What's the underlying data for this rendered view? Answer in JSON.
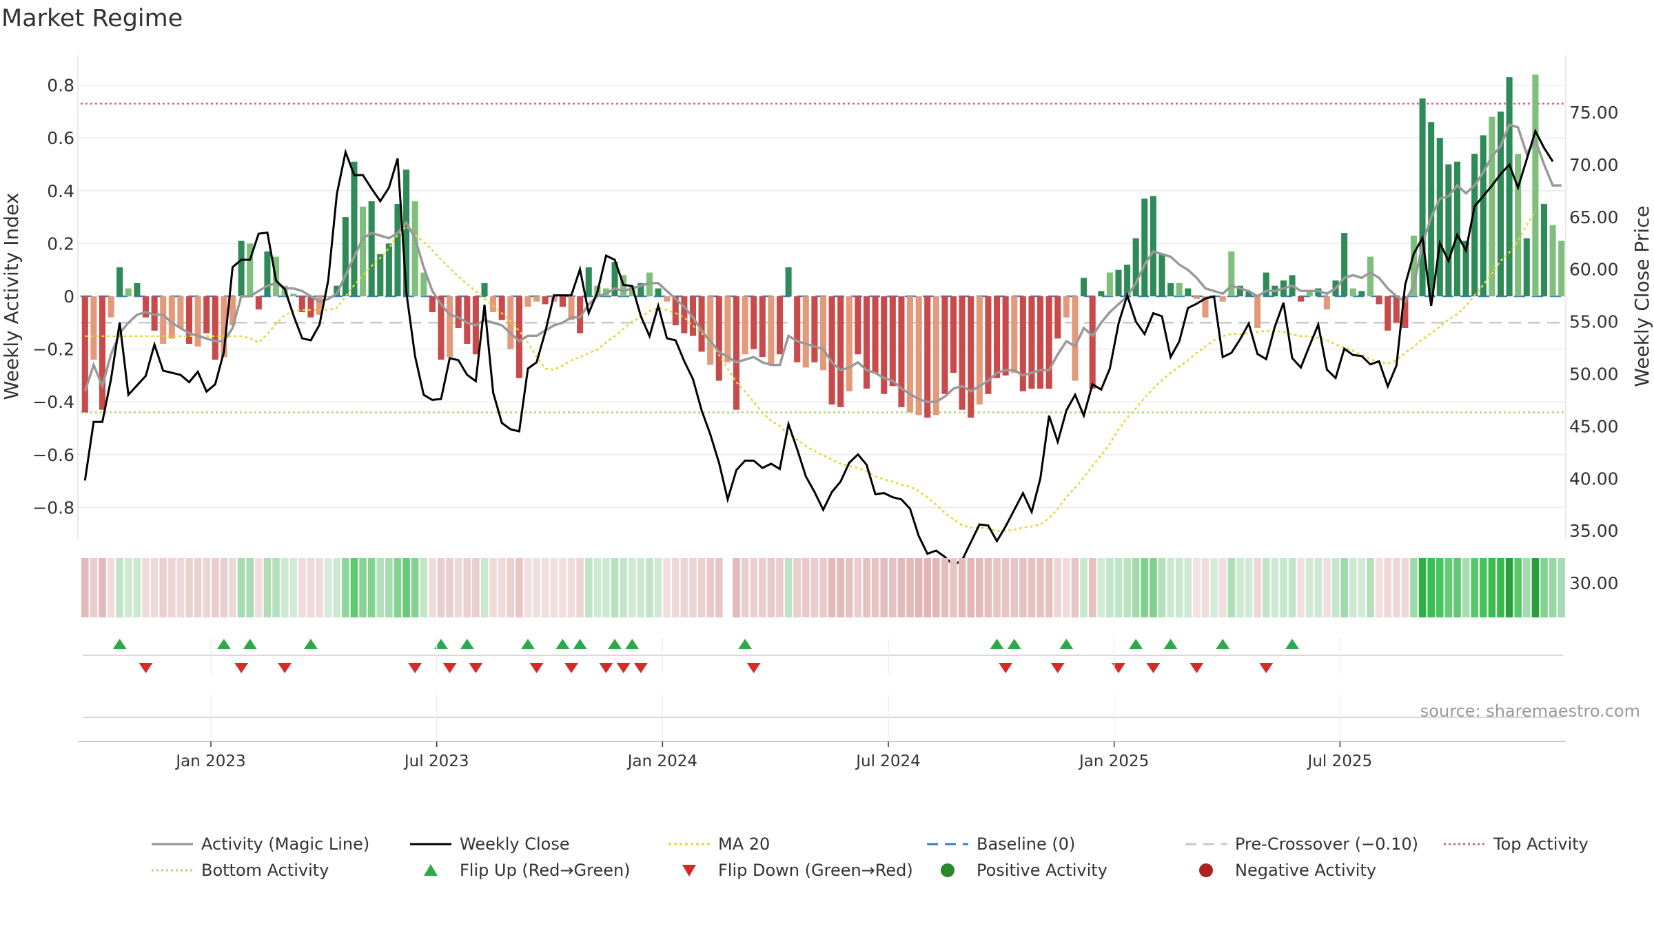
{
  "title": "Market Regime",
  "source_note": "source: sharemaestro.com",
  "colors": {
    "green_dark": "#2e8b57",
    "green_light": "#7fbf7b",
    "red_dark": "#c94a4a",
    "red_light": "#e39a7a",
    "magic_line": "#999999",
    "weekly_close": "#000000",
    "ma20": "#e5d63a",
    "baseline": "#3a7fbf",
    "precrossover": "#c8c8c8",
    "top_activity": "#e05a7a",
    "bottom_activity": "#a8d86a",
    "flip_up": "#2ea84a",
    "flip_down": "#d62a2a",
    "positive_dot": "#2a8a2a",
    "negative_dot": "#b02020"
  },
  "legend": [
    {
      "label": "Activity (Magic Line)",
      "icon": "grey-line-icon"
    },
    {
      "label": "Weekly Close",
      "icon": "black-line-icon"
    },
    {
      "label": "MA 20",
      "icon": "yellow-dotted-line-icon"
    },
    {
      "label": "Baseline (0)",
      "icon": "blue-dashed-line-icon"
    },
    {
      "label": "Pre-Crossover (−0.10)",
      "icon": "grey-dashed-line-icon"
    },
    {
      "label": "Top Activity",
      "icon": "pink-dotted-line-icon"
    },
    {
      "label": "Bottom Activity",
      "icon": "green-dotted-line-icon"
    },
    {
      "label": "Flip Up (Red→Green)",
      "icon": "green-triangle-up-icon"
    },
    {
      "label": "Flip Down (Green→Red)",
      "icon": "red-triangle-down-icon"
    },
    {
      "label": "Positive Activity",
      "icon": "green-circle-icon"
    },
    {
      "label": "Negative Activity",
      "icon": "red-circle-icon"
    }
  ],
  "chart_data": {
    "type": "bar",
    "title": "Market Regime",
    "ylabel_left": "Weekly Activity Index",
    "ylabel_right": "Weekly Close Price",
    "ylim_left": [
      -0.92,
      0.92
    ],
    "ylim_right": [
      29,
      75.5
    ],
    "yticks_left": [
      "0.8",
      "0.6",
      "0.4",
      "0.2",
      "0",
      "−0.2",
      "−0.4",
      "−0.6",
      "−0.8"
    ],
    "yticks_left_values": [
      0.8,
      0.6,
      0.4,
      0.2,
      0,
      -0.2,
      -0.4,
      -0.6,
      -0.8
    ],
    "yticks_right": [
      "75.00",
      "70.00",
      "65.00",
      "60.00",
      "55.00",
      "50.00",
      "45.00",
      "40.00",
      "35.00",
      "30.00"
    ],
    "yticks_right_values": [
      75,
      70,
      65,
      60,
      55,
      50,
      45,
      40,
      35,
      30
    ],
    "xticks": [
      "Jan 2023",
      "Jul 2023",
      "Jan 2024",
      "Jul 2024",
      "Jan 2025",
      "Jul 2025"
    ],
    "xticks_week_index": [
      15,
      41,
      67,
      93,
      119,
      145
    ],
    "reference_lines": {
      "top_activity": 0.73,
      "bottom_activity": -0.44,
      "pre_crossover": -0.1,
      "baseline": 0
    },
    "activity": [
      -0.44,
      -0.24,
      -0.43,
      -0.08,
      0.11,
      0.03,
      0.05,
      -0.08,
      -0.13,
      -0.18,
      -0.16,
      -0.12,
      -0.18,
      -0.19,
      -0.14,
      -0.24,
      -0.23,
      -0.11,
      0.21,
      0.2,
      -0.05,
      0.17,
      0.15,
      0.04,
      0.01,
      -0.06,
      -0.08,
      -0.07,
      0.0,
      0.04,
      0.3,
      0.51,
      0.34,
      0.36,
      0.16,
      0.2,
      0.35,
      0.48,
      0.36,
      0.09,
      -0.06,
      -0.24,
      -0.23,
      -0.12,
      -0.18,
      -0.22,
      0.05,
      -0.06,
      -0.09,
      -0.2,
      -0.31,
      -0.04,
      -0.02,
      -0.03,
      -0.02,
      -0.04,
      -0.09,
      -0.14,
      0.11,
      0.04,
      0.03,
      0.13,
      0.08,
      0.04,
      0.05,
      0.09,
      0.03,
      -0.02,
      -0.11,
      -0.14,
      -0.15,
      -0.21,
      -0.26,
      -0.32,
      -0.25,
      -0.43,
      -0.22,
      -0.2,
      -0.23,
      -0.26,
      -0.22,
      0.11,
      -0.25,
      -0.27,
      -0.25,
      -0.28,
      -0.41,
      -0.42,
      -0.36,
      -0.22,
      -0.35,
      -0.29,
      -0.37,
      -0.34,
      -0.42,
      -0.44,
      -0.45,
      -0.46,
      -0.45,
      -0.37,
      -0.29,
      -0.43,
      -0.46,
      -0.41,
      -0.37,
      -0.31,
      -0.3,
      -0.29,
      -0.36,
      -0.35,
      -0.35,
      -0.35,
      -0.16,
      -0.08,
      -0.32,
      0.07,
      -0.35,
      0.02,
      0.09,
      0.1,
      0.12,
      0.22,
      0.37,
      0.38,
      0.16,
      0.05,
      0.05,
      0.03,
      -0.01,
      -0.08,
      0.0,
      -0.02,
      0.17,
      0.04,
      0.02,
      -0.12,
      0.09,
      0.04,
      0.06,
      0.08,
      -0.02,
      0.02,
      0.03,
      -0.05,
      0.06,
      0.24,
      0.03,
      0.02,
      0.15,
      -0.03,
      -0.13,
      -0.1,
      -0.12,
      0.23,
      0.75,
      0.66,
      0.6,
      0.5,
      0.51,
      0.21,
      0.54,
      0.61,
      0.68,
      0.7,
      0.83,
      0.54,
      0.22,
      0.84,
      0.35,
      0.27,
      0.21
    ],
    "activity_shade": [
      "D",
      "L",
      "D",
      "L",
      "D",
      "L",
      "D",
      "D",
      "D",
      "L",
      "L",
      "L",
      "D",
      "L",
      "D",
      "D",
      "L",
      "L",
      "D",
      "L",
      "D",
      "D",
      "L",
      "L",
      "L",
      "D",
      "D",
      "L",
      "L",
      "D",
      "D",
      "D",
      "L",
      "D",
      "D",
      "D",
      "D",
      "D",
      "L",
      "L",
      "D",
      "D",
      "L",
      "D",
      "D",
      "D",
      "D",
      "L",
      "D",
      "L",
      "D",
      "L",
      "L",
      "D",
      "L",
      "D",
      "L",
      "D",
      "D",
      "L",
      "L",
      "D",
      "L",
      "L",
      "D",
      "L",
      "D",
      "L",
      "D",
      "D",
      "D",
      "D",
      "L",
      "D",
      "L",
      "D",
      "L",
      "D",
      "D",
      "L",
      "D",
      "D",
      "D",
      "L",
      "D",
      "L",
      "D",
      "D",
      "L",
      "D",
      "D",
      "D",
      "D",
      "D",
      "D",
      "L",
      "L",
      "D",
      "L",
      "D",
      "D",
      "D",
      "D",
      "L",
      "D",
      "D",
      "D",
      "L",
      "D",
      "D",
      "D",
      "D",
      "D",
      "L",
      "L",
      "D",
      "D",
      "D",
      "L",
      "D",
      "D",
      "D",
      "D",
      "D",
      "D",
      "D",
      "L",
      "D",
      "L",
      "L",
      "D",
      "L",
      "L",
      "D",
      "D",
      "L",
      "D",
      "D",
      "D",
      "D",
      "D",
      "L",
      "D",
      "L",
      "D",
      "D",
      "L",
      "D",
      "L",
      "D",
      "D",
      "D",
      "D",
      "L",
      "D",
      "D",
      "D",
      "D",
      "D",
      "D",
      "D",
      "D",
      "L",
      "D",
      "D",
      "L",
      "D",
      "L",
      "D",
      "L",
      "L",
      "D",
      "L",
      "L",
      "L"
    ],
    "magic_line": [
      -0.36,
      -0.26,
      -0.34,
      -0.22,
      -0.14,
      -0.1,
      -0.07,
      -0.06,
      -0.07,
      -0.07,
      -0.1,
      -0.12,
      -0.14,
      -0.15,
      -0.16,
      -0.17,
      -0.17,
      -0.12,
      0.0,
      0.0,
      0.02,
      0.04,
      0.05,
      0.03,
      0.03,
      0.02,
      0.0,
      -0.02,
      -0.01,
      0.01,
      0.08,
      0.15,
      0.22,
      0.24,
      0.23,
      0.22,
      0.24,
      0.28,
      0.22,
      0.11,
      0.02,
      -0.03,
      -0.07,
      -0.08,
      -0.1,
      -0.11,
      -0.09,
      -0.1,
      -0.11,
      -0.14,
      -0.17,
      -0.15,
      -0.15,
      -0.13,
      -0.11,
      -0.1,
      -0.08,
      -0.08,
      -0.03,
      0.0,
      0.01,
      0.03,
      0.02,
      0.03,
      0.04,
      0.05,
      0.05,
      0.02,
      -0.01,
      -0.04,
      -0.08,
      -0.13,
      -0.17,
      -0.21,
      -0.23,
      -0.25,
      -0.24,
      -0.23,
      -0.25,
      -0.26,
      -0.26,
      -0.15,
      -0.17,
      -0.18,
      -0.19,
      -0.2,
      -0.25,
      -0.28,
      -0.27,
      -0.25,
      -0.28,
      -0.29,
      -0.31,
      -0.32,
      -0.35,
      -0.37,
      -0.39,
      -0.4,
      -0.4,
      -0.38,
      -0.35,
      -0.34,
      -0.36,
      -0.34,
      -0.32,
      -0.29,
      -0.28,
      -0.28,
      -0.3,
      -0.29,
      -0.28,
      -0.28,
      -0.22,
      -0.17,
      -0.19,
      -0.12,
      -0.15,
      -0.1,
      -0.06,
      -0.03,
      0.0,
      0.05,
      0.12,
      0.17,
      0.16,
      0.15,
      0.12,
      0.1,
      0.07,
      0.03,
      0.02,
      0.01,
      0.04,
      0.03,
      0.02,
      0.0,
      0.02,
      0.02,
      0.03,
      0.04,
      0.02,
      0.02,
      0.02,
      0.01,
      0.03,
      0.07,
      0.08,
      0.07,
      0.09,
      0.07,
      0.03,
      0.0,
      -0.02,
      0.04,
      0.2,
      0.3,
      0.37,
      0.38,
      0.42,
      0.39,
      0.42,
      0.47,
      0.53,
      0.57,
      0.65,
      0.64,
      0.54,
      0.59,
      0.5,
      0.42,
      0.42
    ],
    "weekly_close": [
      39.8,
      45.4,
      45.4,
      49.5,
      54.9,
      48.0,
      48.9,
      49.8,
      52.8,
      50.3,
      50.1,
      49.9,
      49.2,
      50.2,
      48.3,
      49.0,
      52.1,
      60.2,
      60.9,
      60.9,
      63.4,
      63.5,
      58.9,
      58.1,
      55.6,
      53.4,
      53.2,
      54.7,
      58.9,
      67.2,
      71.2,
      69.0,
      69.0,
      67.7,
      66.5,
      67.8,
      70.6,
      57.8,
      51.7,
      48.0,
      47.5,
      47.6,
      51.5,
      51.3,
      49.9,
      49.3,
      56.6,
      48.2,
      45.3,
      44.7,
      44.5,
      50.5,
      51.1,
      54.0,
      57.5,
      57.5,
      57.5,
      60.0,
      55.8,
      57.8,
      61.3,
      60.9,
      58.5,
      58.4,
      55.5,
      53.6,
      56.5,
      53.4,
      53.2,
      51.2,
      49.5,
      46.5,
      44.2,
      41.5,
      38.0,
      40.8,
      41.7,
      41.7,
      41.0,
      41.4,
      40.9,
      45.2,
      42.8,
      40.2,
      38.7,
      37.0,
      38.7,
      39.7,
      41.5,
      42.3,
      41.3,
      38.5,
      38.6,
      38.2,
      38.0,
      37.1,
      34.5,
      32.8,
      33.1,
      32.5,
      31.7,
      32.2,
      33.9,
      35.6,
      35.5,
      34.0,
      35.4,
      37.0,
      38.6,
      36.8,
      40.0,
      46.0,
      43.5,
      46.5,
      48.0,
      46.0,
      49.0,
      48.5,
      50.5,
      54.8,
      57.5,
      55.0,
      53.8,
      55.8,
      55.5,
      51.6,
      53.1,
      56.3,
      56.7,
      57.2,
      57.4,
      51.6,
      52.0,
      53.3,
      54.8,
      51.9,
      51.4,
      54.5,
      56.8,
      51.5,
      50.6,
      52.7,
      54.7,
      50.4,
      49.6,
      52.4,
      51.8,
      51.7,
      50.9,
      51.2,
      48.8,
      50.8,
      58.5,
      61.5,
      63.0,
      56.5,
      62.5,
      60.8,
      63.3,
      61.8,
      66.0,
      67.0,
      68.0,
      69.1,
      70.0,
      67.8,
      70.5,
      73.2,
      71.6,
      70.3
    ],
    "ma20": [
      53.6,
      53.6,
      53.6,
      53.6,
      53.6,
      53.6,
      53.6,
      53.6,
      53.6,
      53.6,
      53.6,
      53.6,
      53.6,
      53.6,
      53.6,
      53.6,
      53.6,
      53.6,
      53.6,
      53.4,
      53.0,
      53.8,
      54.8,
      55.6,
      56.0,
      56.1,
      56.1,
      56.1,
      56.1,
      56.3,
      57.4,
      58.5,
      59.4,
      60.3,
      61.1,
      62.0,
      63.3,
      64.1,
      63.3,
      62.6,
      61.8,
      60.9,
      60.1,
      59.3,
      58.6,
      57.9,
      57.2,
      56.5,
      55.8,
      55.0,
      54.1,
      53.0,
      51.6,
      50.5,
      50.4,
      50.8,
      51.3,
      51.6,
      52.0,
      52.3,
      53.0,
      53.6,
      54.3,
      55.0,
      55.4,
      56.0,
      56.3,
      56.1,
      55.8,
      55.4,
      54.6,
      53.9,
      53.0,
      51.8,
      50.5,
      49.2,
      48.3,
      47.3,
      46.3,
      45.5,
      45.0,
      44.2,
      43.7,
      43.1,
      42.6,
      42.2,
      41.8,
      41.4,
      41.2,
      41.0,
      40.7,
      40.2,
      39.9,
      39.7,
      39.4,
      39.2,
      38.8,
      38.2,
      37.5,
      36.7,
      36.1,
      35.5,
      35.3,
      35.3,
      35.2,
      35.0,
      35.0,
      35.1,
      35.3,
      35.4,
      35.6,
      36.2,
      37.1,
      38.2,
      39.1,
      40.1,
      41.2,
      42.2,
      43.3,
      44.7,
      45.8,
      46.7,
      47.7,
      48.6,
      49.4,
      50.1,
      50.7,
      51.3,
      52.0,
      52.6,
      53.2,
      53.6,
      53.8,
      53.8,
      53.9,
      54.0,
      54.1,
      54.1,
      54.0,
      53.8,
      53.6,
      53.6,
      53.4,
      53.2,
      52.8,
      52.5,
      52.2,
      51.8,
      51.4,
      51.1,
      51.0,
      51.3,
      52.0,
      52.6,
      53.3,
      53.9,
      54.5,
      55.2,
      55.7,
      56.5,
      57.5,
      58.5,
      59.6,
      60.8,
      61.6,
      62.7,
      64.2,
      65.6
    ]
  },
  "regime_strip": {
    "missing_weeks": [
      74
    ]
  },
  "flip_up_weeks": [
    4,
    16,
    19,
    26,
    41,
    44,
    51,
    55,
    57,
    61,
    63,
    76,
    105,
    107,
    113,
    121,
    125,
    131,
    139
  ],
  "flip_down_weeks": [
    7,
    18,
    23,
    38,
    42,
    45,
    52,
    56,
    60,
    62,
    64,
    77,
    106,
    112,
    119,
    123,
    128,
    136
  ]
}
